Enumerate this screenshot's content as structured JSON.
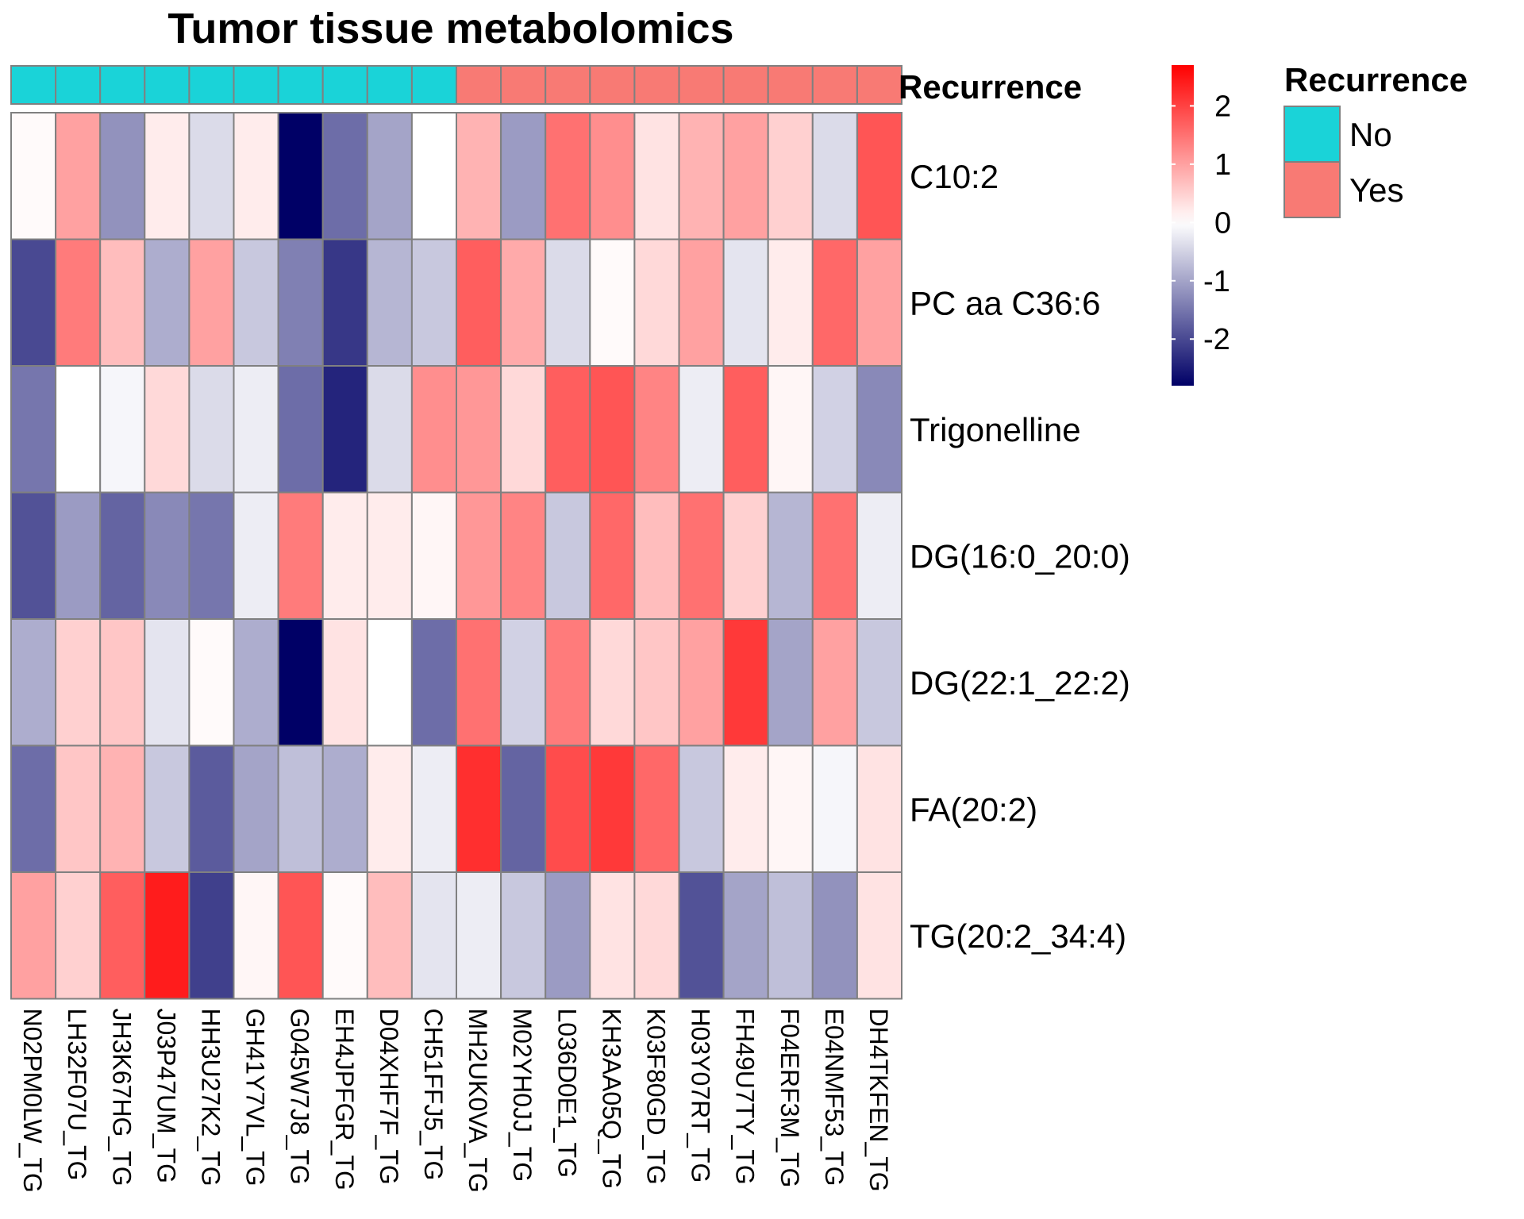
{
  "chart_data": {
    "type": "heatmap",
    "title": "Tumor tissue metabolomics",
    "annotation": {
      "name": "Recurrence",
      "values": [
        "No",
        "No",
        "No",
        "No",
        "No",
        "No",
        "No",
        "No",
        "No",
        "No",
        "Yes",
        "Yes",
        "Yes",
        "Yes",
        "Yes",
        "Yes",
        "Yes",
        "Yes",
        "Yes",
        "Yes"
      ]
    },
    "columns": [
      "N02PM0LW_TG",
      "LH32F07U_TG",
      "JH3K67HG_TG",
      "J03P47UM_TG",
      "HH3U27K2_TG",
      "GH41Y7VL_TG",
      "G045W7J8_TG",
      "EH4JPFGR_TG",
      "D04XHF7F_TG",
      "CH51FFJ5_TG",
      "MH2UK0VA_TG",
      "M02YH0JJ_TG",
      "L036D0E1_TG",
      "KH3AA05Q_TG",
      "K03F80GD_TG",
      "H03Y07RT_TG",
      "FH49U7TY_TG",
      "F04ERF3M_TG",
      "E04NMF53_TG",
      "DH4TKFEN_TG"
    ],
    "rows": [
      "C10:2",
      "PC aa C36:6",
      "Trigonelline",
      "DG(16:0_20:0)",
      "DG(22:1_22:2)",
      "FA(20:2)",
      "TG(20:2_34:4)"
    ],
    "values": [
      [
        0.05,
        1.0,
        -1.2,
        0.2,
        -0.4,
        0.2,
        -2.8,
        -1.6,
        -1.0,
        0.0,
        0.8,
        -1.1,
        1.5,
        1.2,
        0.3,
        0.8,
        1.0,
        0.5,
        -0.4,
        1.8
      ],
      [
        -2.0,
        1.4,
        0.7,
        -0.9,
        1.0,
        -0.6,
        -1.4,
        -2.2,
        -0.8,
        -0.6,
        1.7,
        0.9,
        -0.4,
        0.05,
        0.4,
        1.0,
        -0.3,
        0.2,
        1.6,
        1.0
      ],
      [
        -1.5,
        0.0,
        -0.1,
        0.4,
        -0.4,
        -0.2,
        -1.6,
        -2.4,
        -0.4,
        1.2,
        1.1,
        0.4,
        1.7,
        1.8,
        1.3,
        -0.2,
        1.7,
        0.1,
        -0.5,
        -1.3
      ],
      [
        -1.9,
        -1.1,
        -1.7,
        -1.3,
        -1.5,
        -0.2,
        1.4,
        0.2,
        0.2,
        0.1,
        1.1,
        1.3,
        -0.6,
        1.6,
        0.7,
        1.5,
        0.5,
        -0.8,
        1.5,
        -0.2
      ],
      [
        -0.9,
        0.5,
        0.6,
        -0.3,
        0.05,
        -0.9,
        -2.8,
        0.3,
        0.0,
        -1.6,
        1.5,
        -0.5,
        1.4,
        0.4,
        0.6,
        1.0,
        2.1,
        -1.0,
        1.0,
        -0.6
      ],
      [
        -1.6,
        0.6,
        0.8,
        -0.6,
        -1.8,
        -1.0,
        -0.7,
        -0.9,
        0.2,
        -0.2,
        2.2,
        -1.7,
        1.9,
        2.1,
        1.6,
        -0.6,
        0.2,
        0.1,
        -0.1,
        0.3
      ],
      [
        1.0,
        0.5,
        1.7,
        2.4,
        -2.1,
        0.1,
        1.8,
        0.05,
        0.7,
        -0.3,
        -0.2,
        -0.6,
        -1.1,
        0.3,
        0.4,
        -1.9,
        -1.0,
        -0.7,
        -1.2,
        0.3
      ]
    ],
    "color_scale": {
      "min": -2.8,
      "max": 2.7,
      "ticks": [
        2,
        1,
        0,
        -1,
        -2
      ],
      "low_color": "#000066",
      "mid_color": "#ffffff",
      "high_color": "#ff0000"
    },
    "legend": {
      "title": "Recurrence",
      "placement": "top-right",
      "items": [
        {
          "label": "No",
          "color": "#1ad3d8"
        },
        {
          "label": "Yes",
          "color": "#f87a74"
        }
      ]
    }
  }
}
